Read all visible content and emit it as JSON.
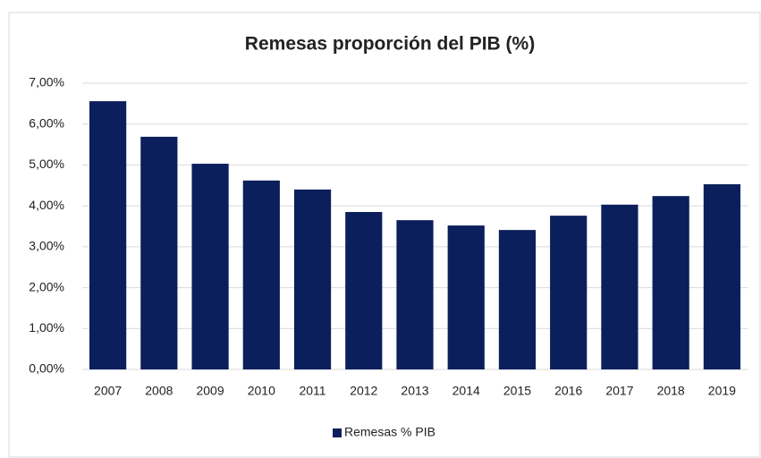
{
  "chart_data": {
    "type": "bar",
    "title": "Remesas proporción del PIB (%)",
    "categories": [
      "2007",
      "2008",
      "2009",
      "2010",
      "2011",
      "2012",
      "2013",
      "2014",
      "2015",
      "2016",
      "2017",
      "2018",
      "2019"
    ],
    "series": [
      {
        "name": "Remesas % PIB",
        "color": "#0b1f5c",
        "values": [
          6.56,
          5.69,
          5.03,
          4.62,
          4.4,
          3.85,
          3.65,
          3.52,
          3.41,
          3.76,
          4.03,
          4.24,
          4.53
        ]
      }
    ],
    "ylim": [
      0,
      7
    ],
    "yticks": [
      {
        "value": 0,
        "label": "0,00%"
      },
      {
        "value": 1,
        "label": "1,00%"
      },
      {
        "value": 2,
        "label": "2,00%"
      },
      {
        "value": 3,
        "label": "3,00%"
      },
      {
        "value": 4,
        "label": "4,00%"
      },
      {
        "value": 5,
        "label": "5,00%"
      },
      {
        "value": 6,
        "label": "6,00%"
      },
      {
        "value": 7,
        "label": "7,00%"
      }
    ],
    "grid": true,
    "legend": "bottom"
  }
}
